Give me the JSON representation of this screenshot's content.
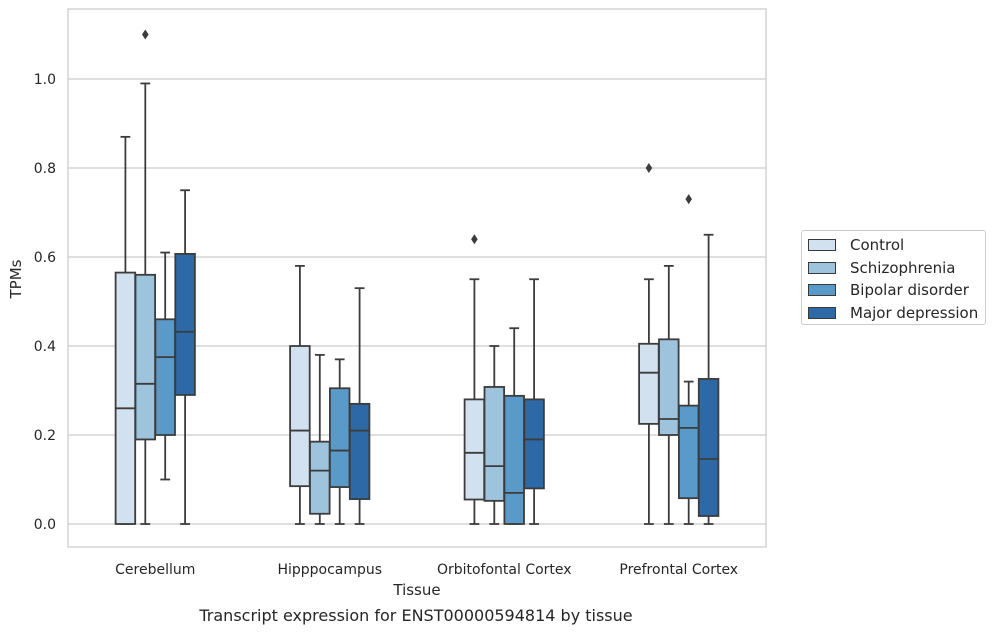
{
  "caption": "Transcript expression for ENST00000594814 by tissue",
  "chart_data": {
    "type": "box",
    "title": "",
    "xlabel": "Tissue",
    "ylabel": "TPMs",
    "ylim": [
      -0.05,
      1.16
    ],
    "yticks": [
      "0.0",
      "0.2",
      "0.4",
      "0.6",
      "0.8",
      "1.0"
    ],
    "grid": "horizontal",
    "legend_position": "right",
    "categories": [
      "Cerebellum",
      "Hipppocampus",
      "Orbitofontal Cortex",
      "Prefrontal Cortex"
    ],
    "series": [
      {
        "name": "Control",
        "color": "#d1e1ef",
        "boxes": [
          {
            "whislo": 0.0,
            "q1": 0.0,
            "med": 0.26,
            "q3": 0.565,
            "whishi": 0.87,
            "fliers": []
          },
          {
            "whislo": 0.0,
            "q1": 0.085,
            "med": 0.21,
            "q3": 0.4,
            "whishi": 0.58,
            "fliers": []
          },
          {
            "whislo": 0.0,
            "q1": 0.055,
            "med": 0.16,
            "q3": 0.28,
            "whishi": 0.55,
            "fliers": [
              0.64
            ]
          },
          {
            "whislo": 0.0,
            "q1": 0.225,
            "med": 0.34,
            "q3": 0.405,
            "whishi": 0.55,
            "fliers": [
              0.8
            ]
          }
        ]
      },
      {
        "name": "Schizophrenia",
        "color": "#9dc3dd",
        "boxes": [
          {
            "whislo": 0.0,
            "q1": 0.19,
            "med": 0.315,
            "q3": 0.56,
            "whishi": 0.99,
            "fliers": [
              1.1
            ]
          },
          {
            "whislo": 0.0,
            "q1": 0.023,
            "med": 0.12,
            "q3": 0.185,
            "whishi": 0.38,
            "fliers": []
          },
          {
            "whislo": 0.0,
            "q1": 0.052,
            "med": 0.13,
            "q3": 0.308,
            "whishi": 0.4,
            "fliers": []
          },
          {
            "whislo": 0.0,
            "q1": 0.2,
            "med": 0.236,
            "q3": 0.415,
            "whishi": 0.58,
            "fliers": []
          }
        ]
      },
      {
        "name": "Bipolar disorder",
        "color": "#5a9ac8",
        "boxes": [
          {
            "whislo": 0.1,
            "q1": 0.2,
            "med": 0.375,
            "q3": 0.46,
            "whishi": 0.61,
            "fliers": []
          },
          {
            "whislo": 0.0,
            "q1": 0.083,
            "med": 0.165,
            "q3": 0.305,
            "whishi": 0.37,
            "fliers": []
          },
          {
            "whislo": 0.0,
            "q1": 0.0,
            "med": 0.07,
            "q3": 0.288,
            "whishi": 0.44,
            "fliers": []
          },
          {
            "whislo": 0.0,
            "q1": 0.058,
            "med": 0.216,
            "q3": 0.266,
            "whishi": 0.32,
            "fliers": [
              0.73
            ]
          }
        ]
      },
      {
        "name": "Major depression",
        "color": "#2d69a6",
        "boxes": [
          {
            "whislo": 0.0,
            "q1": 0.29,
            "med": 0.432,
            "q3": 0.607,
            "whishi": 0.75,
            "fliers": []
          },
          {
            "whislo": 0.0,
            "q1": 0.056,
            "med": 0.21,
            "q3": 0.27,
            "whishi": 0.53,
            "fliers": []
          },
          {
            "whislo": 0.0,
            "q1": 0.08,
            "med": 0.19,
            "q3": 0.28,
            "whishi": 0.55,
            "fliers": []
          },
          {
            "whislo": 0.0,
            "q1": 0.018,
            "med": 0.146,
            "q3": 0.326,
            "whishi": 0.65,
            "fliers": []
          }
        ]
      }
    ]
  }
}
